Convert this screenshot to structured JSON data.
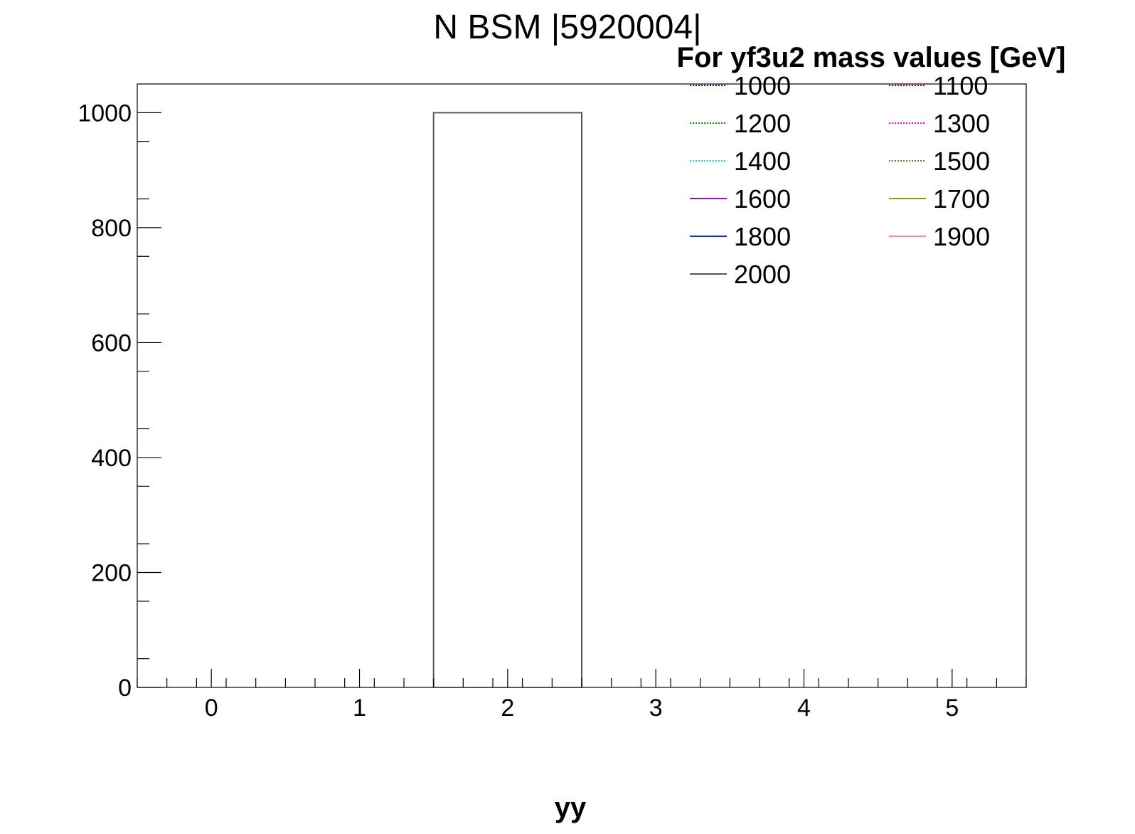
{
  "chart_data": {
    "type": "bar",
    "title": "N BSM |5920004|",
    "xlabel": "yy",
    "ylabel": "",
    "xlim": [
      -0.5,
      5.5
    ],
    "ylim": [
      0,
      1050
    ],
    "x_ticks": [
      "0",
      "1",
      "2",
      "3",
      "4",
      "5"
    ],
    "y_ticks": [
      "0",
      "200",
      "400",
      "600",
      "800",
      "1000"
    ],
    "legend": {
      "title": "For yf3u2 mass values [GeV]",
      "placement": "top-right",
      "columns": 2
    },
    "series": [
      {
        "name": "1000",
        "color": "#0000cc",
        "style": "dotted",
        "bins": []
      },
      {
        "name": "1100",
        "color": "#cc0000",
        "style": "dotted",
        "bins": []
      },
      {
        "name": "1200",
        "color": "#009900",
        "style": "dotted",
        "bins": []
      },
      {
        "name": "1300",
        "color": "#ff00ff",
        "style": "dotted",
        "bins": []
      },
      {
        "name": "1400",
        "color": "#00e5e5",
        "style": "dotted",
        "bins": []
      },
      {
        "name": "1500",
        "color": "#996633",
        "style": "dotted",
        "bins": []
      },
      {
        "name": "1600",
        "color": "#aa00cc",
        "style": "solid",
        "bins": []
      },
      {
        "name": "1700",
        "color": "#999900",
        "style": "solid",
        "bins": []
      },
      {
        "name": "1800",
        "color": "#0033cc",
        "style": "solid",
        "bins": []
      },
      {
        "name": "1900",
        "color": "#ff88bb",
        "style": "solid",
        "bins": []
      },
      {
        "name": "2000",
        "color": "#555555",
        "style": "solid",
        "bins": [
          {
            "low": 1.5,
            "high": 2.5,
            "value": 1000
          }
        ]
      }
    ]
  }
}
